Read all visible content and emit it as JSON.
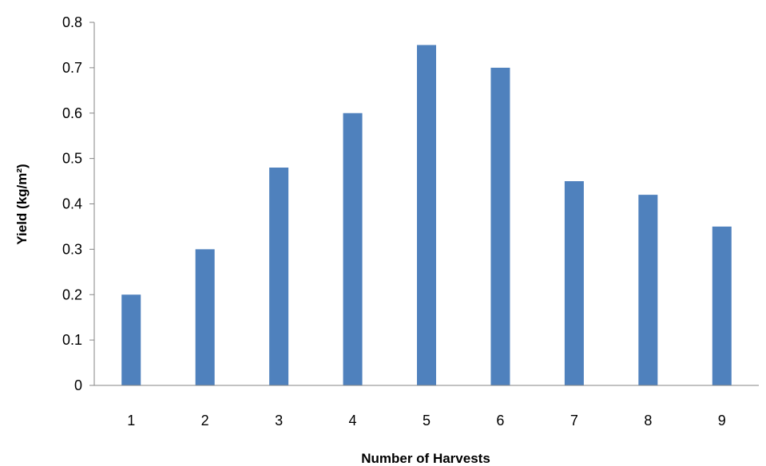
{
  "chart_data": {
    "type": "bar",
    "title": "",
    "xlabel": "Number of Harvests",
    "ylabel": "Yield (kg/m²)",
    "categories": [
      "1",
      "2",
      "3",
      "4",
      "5",
      "6",
      "7",
      "8",
      "9"
    ],
    "series": [
      {
        "values": [
          0.2,
          0.3,
          0.48,
          0.6,
          0.75,
          0.7,
          0.45,
          0.42,
          0.35
        ]
      }
    ],
    "ylim": [
      0,
      0.8
    ],
    "yticks": [
      "0",
      "0.1",
      "0.2",
      "0.3",
      "0.4",
      "0.5",
      "0.6",
      "0.7",
      "0.8"
    ],
    "grid": false,
    "legend": "none",
    "colors": {
      "bar": "#4f81bd",
      "axis": "#868686"
    }
  }
}
